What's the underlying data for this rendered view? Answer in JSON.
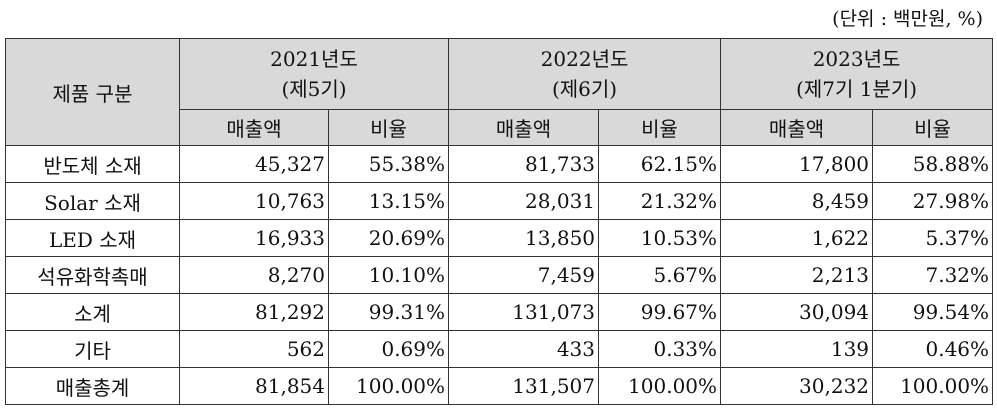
{
  "unit_note": "(단위 : 백만원, %)",
  "header": {
    "category": "제품 구분",
    "periods": [
      {
        "year": "2021년도",
        "term": "(제5기)"
      },
      {
        "year": "2022년도",
        "term": "(제6기)"
      },
      {
        "year": "2023년도",
        "term": "(제7기 1분기)"
      }
    ],
    "sales": "매출액",
    "ratio": "비율"
  },
  "rows": [
    {
      "label": "반도체 소재",
      "values": [
        "45,327",
        "55.38%",
        "81,733",
        "62.15%",
        "17,800",
        "58.88%"
      ]
    },
    {
      "label": "Solar 소재",
      "values": [
        "10,763",
        "13.15%",
        "28,031",
        "21.32%",
        "8,459",
        "27.98%"
      ]
    },
    {
      "label": "LED 소재",
      "values": [
        "16,933",
        "20.69%",
        "13,850",
        "10.53%",
        "1,622",
        "5.37%"
      ]
    },
    {
      "label": "석유화학촉매",
      "values": [
        "8,270",
        "10.10%",
        "7,459",
        "5.67%",
        "2,213",
        "7.32%"
      ]
    },
    {
      "label": "소계",
      "values": [
        "81,292",
        "99.31%",
        "131,073",
        "99.67%",
        "30,094",
        "99.54%"
      ]
    },
    {
      "label": "기타",
      "values": [
        "562",
        "0.69%",
        "433",
        "0.33%",
        "139",
        "0.46%"
      ]
    },
    {
      "label": "매출총계",
      "values": [
        "81,854",
        "100.00%",
        "131,507",
        "100.00%",
        "30,232",
        "100.00%"
      ]
    }
  ]
}
